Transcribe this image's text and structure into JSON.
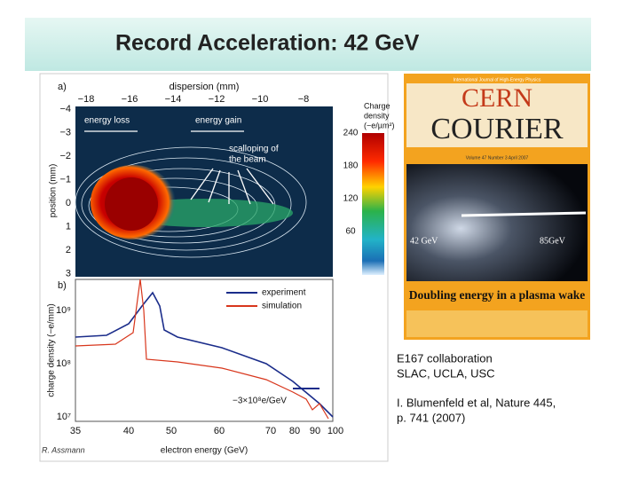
{
  "header": {
    "title": "Record Acceleration: 42 GeV"
  },
  "panel_a": {
    "label": "a)",
    "top_axis_label": "dispersion (mm)",
    "top_ticks": [
      "−18",
      "−16",
      "−14",
      "−12",
      "−10",
      "−8"
    ],
    "y_label": "position (mm)",
    "y_ticks": [
      "−4",
      "−3",
      "−2",
      "−1",
      "0",
      "1",
      "2",
      "3"
    ],
    "annotations": [
      "energy loss",
      "energy gain",
      "scalloping of",
      "the beam"
    ],
    "colorbar_title": [
      "Charge",
      "density",
      "(−e/µm²)"
    ],
    "colorbar_ticks": [
      "240",
      "180",
      "120",
      "60"
    ]
  },
  "panel_b": {
    "label": "b)",
    "y_label": "charge density (−e/mm)",
    "y_ticks": [
      "10⁹",
      "10⁸",
      "10⁷"
    ],
    "legend": [
      "experiment",
      "simulation"
    ],
    "annotation": "−3×10⁸e/GeV",
    "x_ticks": [
      "35",
      "40",
      "50",
      "60",
      "70",
      "80",
      "90",
      "100"
    ],
    "x_label": "electron energy (GeV)"
  },
  "cover": {
    "masthead_top": "CERN",
    "masthead_bottom": "COURIER",
    "tagline": "International Journal of High-Energy Physics",
    "issue": "Volume 47 Number 3 April 2007",
    "left_label": "42 GeV",
    "right_label": "85GeV",
    "headline": "Doubling energy in a plasma wake"
  },
  "caption": [
    "E167 collaboration",
    "SLAC, UCLA, USC",
    "I. Blumenfeld et al, Nature 445,",
    "p. 741 (2007)"
  ],
  "author": "R. Assmann"
}
